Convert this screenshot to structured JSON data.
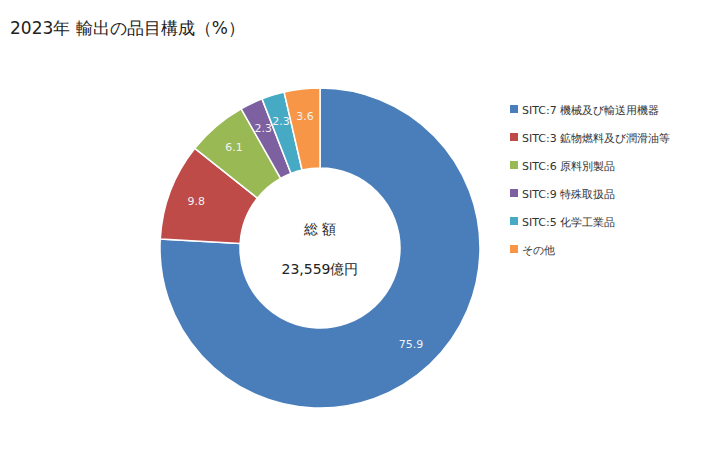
{
  "chart_data": {
    "type": "pie",
    "title": "2023年 輸出の品目構成（%）",
    "annotations": [
      "総 額",
      "23,559億円"
    ],
    "categories": [
      "SITC:7 機械及び輸送用機器",
      "SITC:3 鉱物燃料及び潤滑油等",
      "SITC:6 原料別製品",
      "SITC:9 特殊取扱品",
      "SITC:5 化学工業品",
      "その他"
    ],
    "values": [
      75.9,
      9.8,
      6.1,
      2.3,
      2.3,
      3.6
    ],
    "colors": [
      "#4a7ebb",
      "#be4b48",
      "#98b954",
      "#7d60a0",
      "#46aac5",
      "#f79646"
    ],
    "data_labels": true,
    "legend": "right"
  }
}
